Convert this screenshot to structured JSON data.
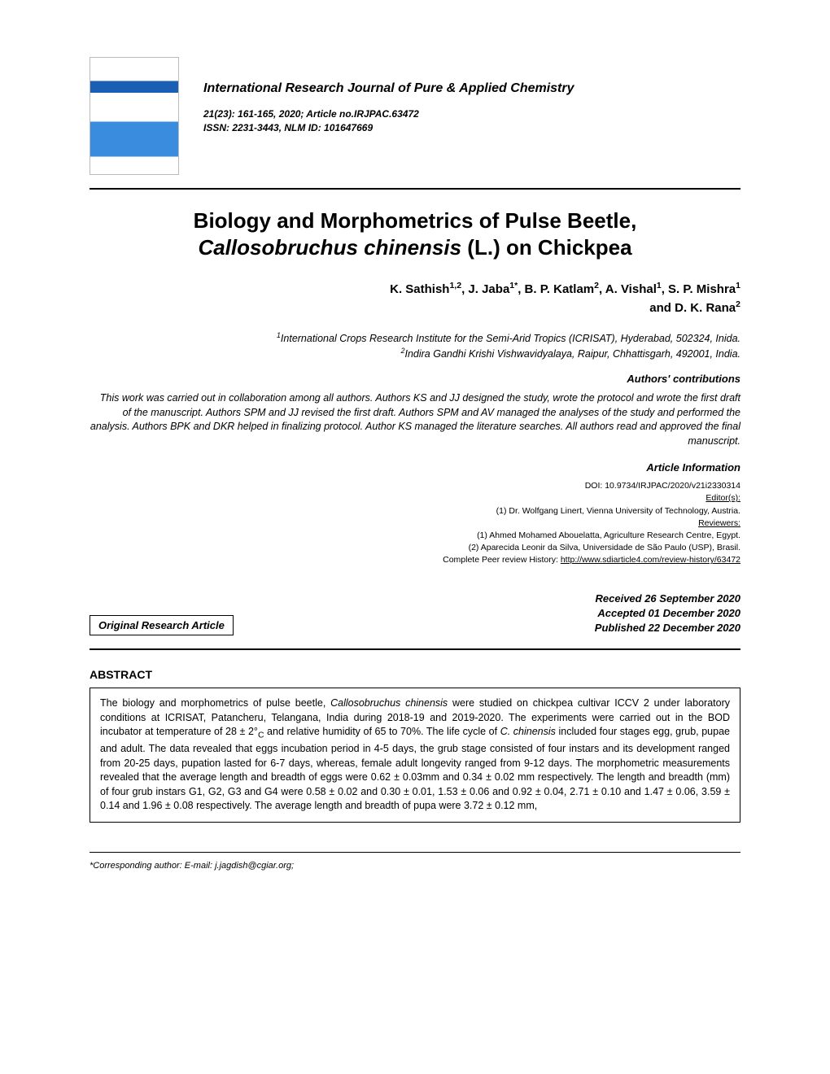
{
  "journal": {
    "name": "International Research Journal of Pure & Applied Chemistry",
    "citation": "21(23): 161-165, 2020; Article no.IRJPAC.63472",
    "issn": "ISSN: 2231-3443, NLM ID: 101647669"
  },
  "title": {
    "line1": "Biology and Morphometrics of Pulse Beetle,",
    "line2_italic": "Callosobruchus chinensis",
    "line2_rest": " (L.) on Chickpea"
  },
  "authors_html": "K. Sathish<sup>1,2</sup>, J. Jaba<sup>1*</sup>, B. P. Katlam<sup>2</sup>, A. Vishal<sup>1</sup>, S. P. Mishra<sup>1</sup><br>and D. K. Rana<sup>2</sup>",
  "affiliations": {
    "a1": "International Crops Research Institute for the Semi-Arid Tropics (ICRISAT), Hyderabad, 502324, Inida.",
    "a2": "Indira Gandhi Krishi Vishwavidyalaya, Raipur, Chhattisgarh, 492001, India."
  },
  "contributions": {
    "heading": "Authors' contributions",
    "text": "This work was carried out in collaboration among all authors. Authors KS and JJ designed the study, wrote the protocol and wrote the first draft of the manuscript. Authors SPM and JJ revised the first draft. Authors SPM and AV managed the analyses of the study and performed the analysis. Authors BPK and DKR helped in finalizing protocol. Author KS managed the literature searches. All authors read and approved the final manuscript."
  },
  "article_info": {
    "heading": "Article Information",
    "doi": "DOI: 10.9734/IRJPAC/2020/v21i2330314",
    "editors_label": "Editor(s):",
    "editor1": "(1) Dr. Wolfgang Linert, Vienna University of Technology, Austria.",
    "reviewers_label": "Reviewers:",
    "reviewer1": "(1) Ahmed Mohamed Abouelatta, Agriculture Research Centre, Egypt.",
    "reviewer2": "(2) Aparecida Leonir da Silva, Universidade de São Paulo (USP), Brasil.",
    "history_prefix": "Complete Peer review History: ",
    "history_link": "http://www.sdiarticle4.com/review-history/63472"
  },
  "article_type": "Original Research Article",
  "dates": {
    "received": "Received 26 September 2020",
    "accepted": "Accepted 01 December 2020",
    "published": "Published 22 December 2020"
  },
  "abstract": {
    "heading": "ABSTRACT",
    "prefix": "The biology and morphometrics of pulse beetle, ",
    "species1": "Callosobruchus chinensis",
    "mid1": " were studied on chickpea cultivar ICCV 2 under laboratory conditions at ICRISAT, Patancheru, Telangana, India during 2018-19 and 2019-2020. The experiments were carried out in the BOD incubator at temperature of 28 ± 2°",
    "sub_c": "C",
    "mid2": " and relative humidity of 65 to 70%. The life cycle of ",
    "species2": "C. chinensis",
    "rest": " included four stages egg, grub, pupae and adult. The data revealed that eggs incubation period in 4-5 days, the grub stage consisted of four instars and its development ranged from 20-25 days, pupation lasted for 6-7 days, whereas, female adult longevity ranged from 9-12 days. The morphometric measurements revealed that the average length and breadth of eggs were 0.62 ± 0.03mm and 0.34 ± 0.02 mm respectively. The length and breadth (mm) of four grub instars G1, G2, G3 and G4 were 0.58 ± 0.02 and 0.30 ± 0.01, 1.53 ± 0.06 and 0.92 ± 0.04, 2.71 ± 0.10 and 1.47 ± 0.06, 3.59 ± 0.14 and 1.96 ± 0.08 respectively. The average length and breadth of pupa were 3.72 ± 0.12 mm,"
  },
  "footer": "*Corresponding author: E-mail: j.jagdish@cgiar.org;",
  "colors": {
    "text": "#000000",
    "background": "#ffffff",
    "rule": "#000000"
  }
}
